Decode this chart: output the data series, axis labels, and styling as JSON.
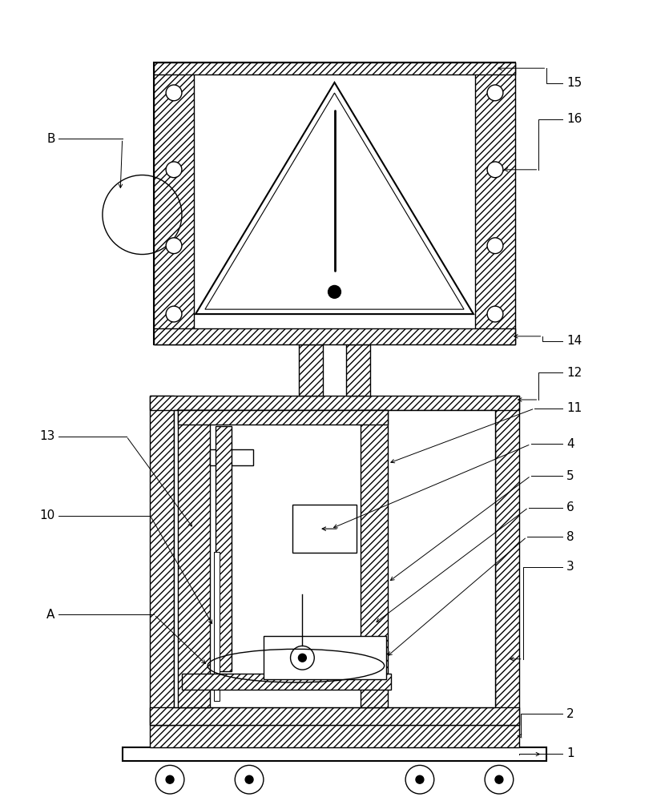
{
  "bg_color": "#ffffff",
  "figsize": [
    8.35,
    10.0
  ],
  "dpi": 100,
  "lw": 1.0,
  "lw2": 1.5
}
